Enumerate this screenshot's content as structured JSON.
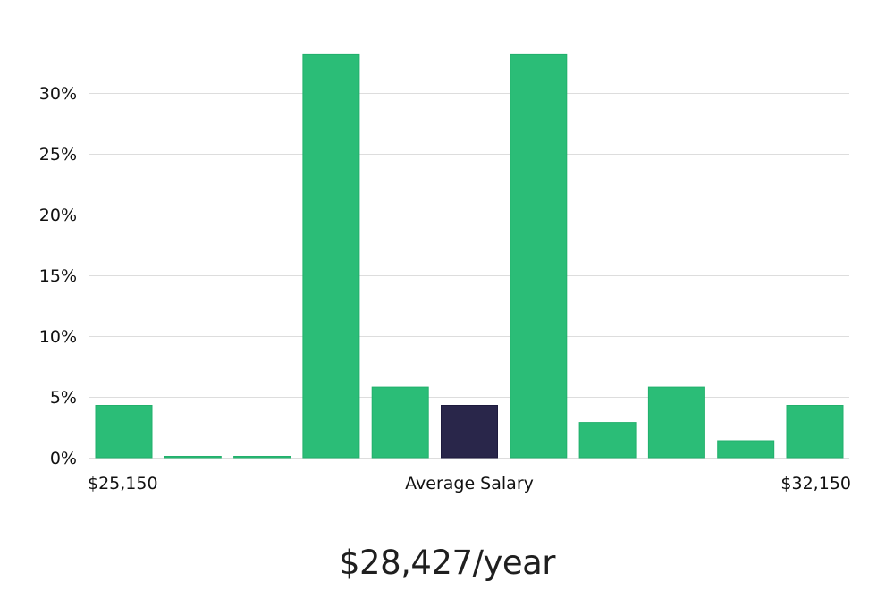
{
  "chart_data": {
    "type": "bar",
    "y_unit": "%",
    "yticks": [
      0,
      5,
      10,
      15,
      20,
      25,
      30
    ],
    "ylim": [
      0,
      34.7
    ],
    "values": [
      4.3,
      0.1,
      0.1,
      33.2,
      5.8,
      4.3,
      33.2,
      2.9,
      5.8,
      1.4,
      4.3
    ],
    "highlight_index": 5,
    "x_labels": {
      "left": "$25,150",
      "center": "Average Salary",
      "right": "$32,150"
    },
    "grid": true,
    "colors": {
      "bar": "#2bbd77",
      "bar_highlight": "#29264a",
      "grid": "#dddddd",
      "axis": "#e3e3e3",
      "text": "#111111"
    }
  },
  "summary": {
    "salary_text": "$28,427/year"
  }
}
